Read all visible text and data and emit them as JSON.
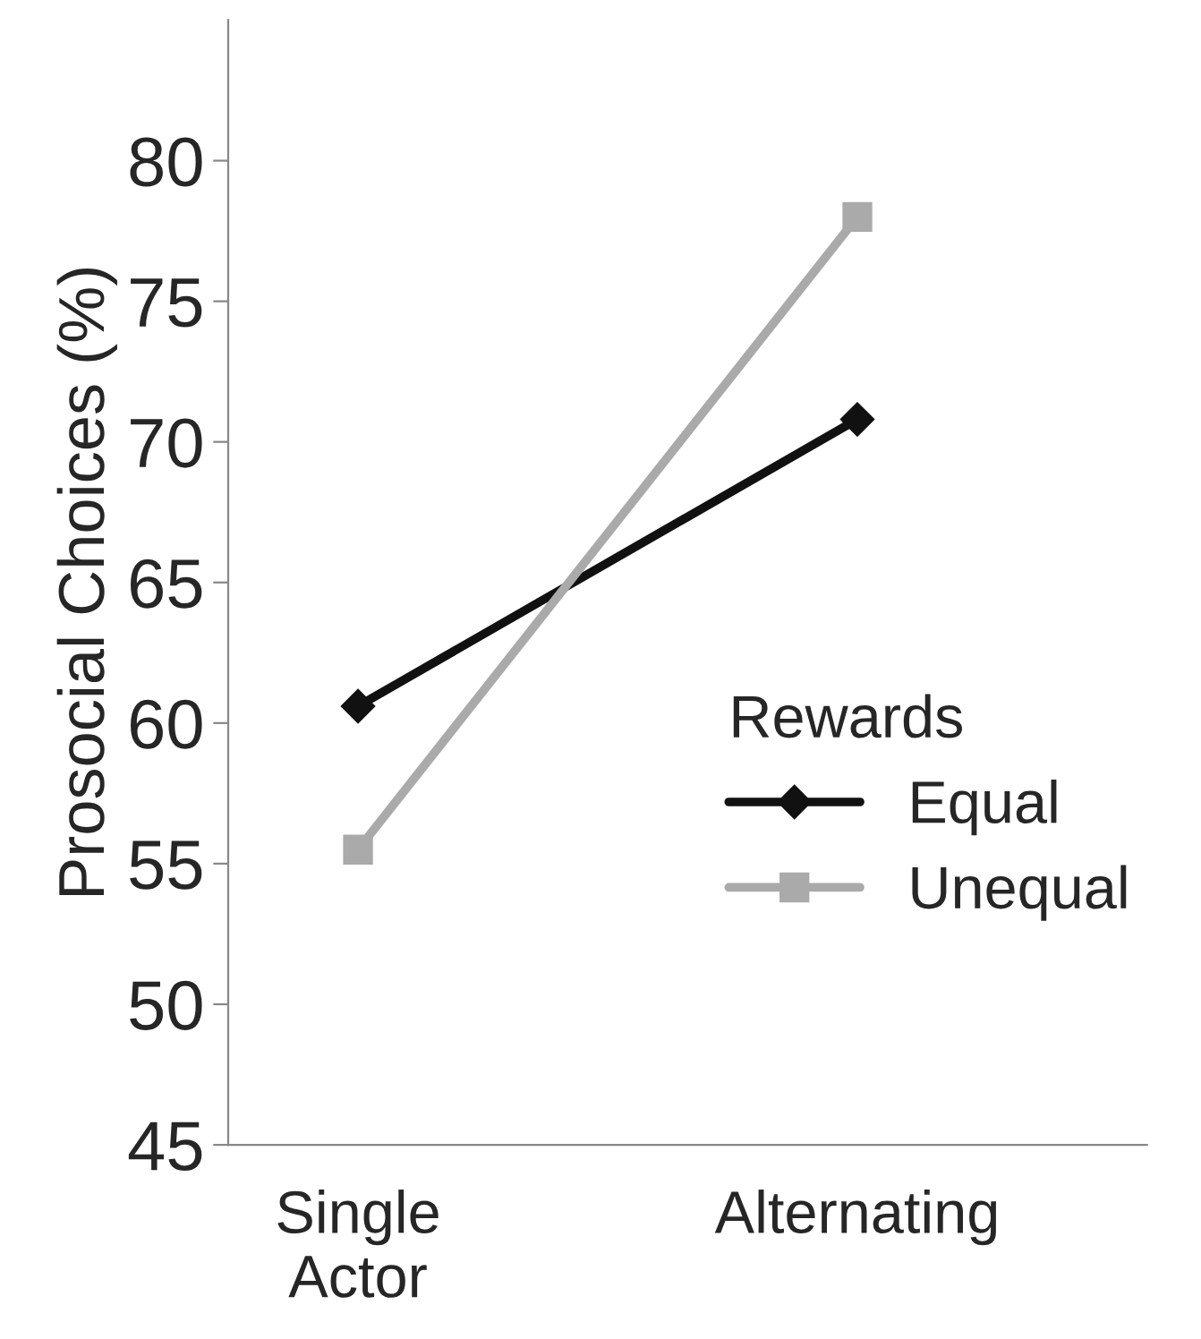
{
  "chart_data": {
    "type": "line",
    "ylabel": "Prosocial Choices (%)",
    "legend_title": "Rewards",
    "categories": [
      "Single\nActor",
      "Alternating"
    ],
    "series": [
      {
        "name": "Equal",
        "color": "#111111",
        "values": [
          60.6,
          70.8
        ],
        "marker": "diamond"
      },
      {
        "name": "Unequal",
        "color": "#aaaaaa",
        "values": [
          55.5,
          78.0
        ],
        "marker": "square"
      }
    ],
    "ylim": [
      45,
      85
    ],
    "yticks": [
      45,
      50,
      55,
      60,
      65,
      70,
      75,
      80
    ],
    "grid": false,
    "legend": "right",
    "line_style": "solid"
  }
}
